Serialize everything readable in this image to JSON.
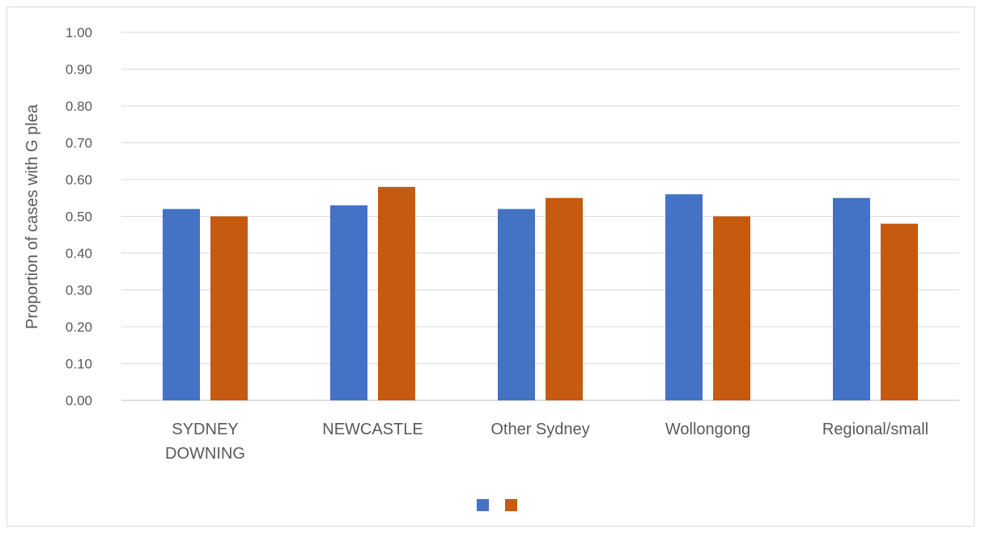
{
  "chart_data": {
    "type": "bar",
    "title": "",
    "xlabel": "",
    "ylabel": "Proportion of cases with G plea",
    "categories": [
      [
        "SYDNEY",
        "DOWNING"
      ],
      [
        "NEWCASTLE"
      ],
      [
        "Other Sydney"
      ],
      [
        "Wollongong"
      ],
      [
        "Regional/small"
      ]
    ],
    "series": [
      {
        "values": [
          0.52,
          0.53,
          0.52,
          0.56,
          0.55
        ],
        "color": "#4472c4"
      },
      {
        "values": [
          0.5,
          0.58,
          0.55,
          0.5,
          0.48
        ],
        "color": "#c55a11"
      }
    ],
    "ylim": [
      0,
      1
    ],
    "yticks": [
      "0.00",
      "0.10",
      "0.20",
      "0.30",
      "0.40",
      "0.50",
      "0.60",
      "0.70",
      "0.80",
      "0.90",
      "1.00"
    ],
    "grid": true,
    "legend_position": "bottom-center"
  }
}
